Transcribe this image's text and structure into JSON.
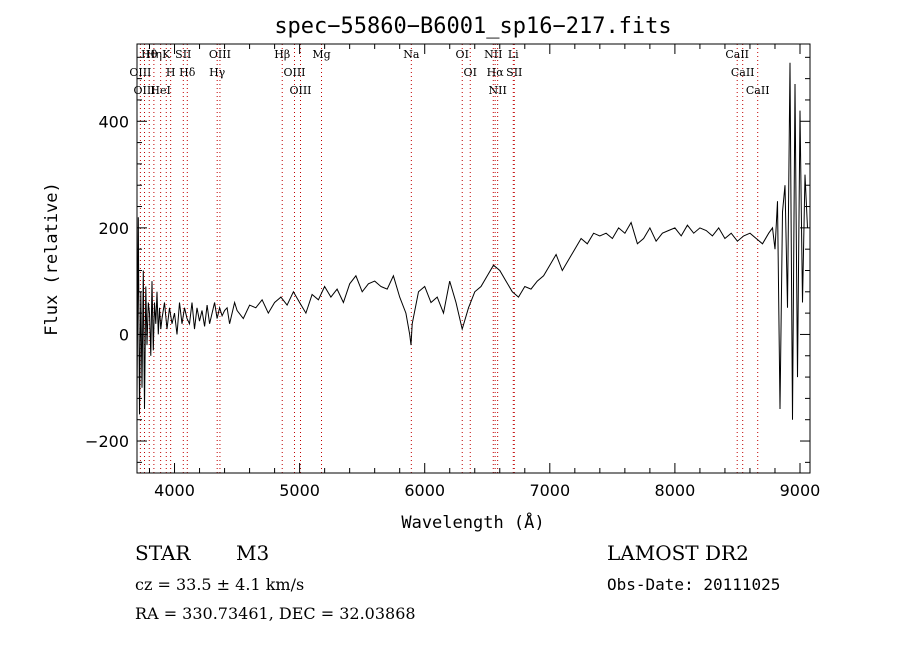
{
  "chart_data": {
    "type": "line",
    "title": "spec−55860−B6001_sp16−217.fits",
    "xlabel": "Wavelength (Å)",
    "ylabel": "Flux (relative)",
    "xlim": [
      3700,
      9080
    ],
    "ylim": [
      -260,
      545
    ],
    "x_ticks": [
      4000,
      5000,
      6000,
      7000,
      8000,
      9000
    ],
    "y_ticks": [
      -200,
      0,
      200,
      400
    ],
    "line_color": "#000000",
    "marker_color": "#c00000",
    "series": [
      {
        "x": [
          3700,
          3710,
          3720,
          3730,
          3740,
          3750,
          3760,
          3770,
          3780,
          3790,
          3800,
          3810,
          3820,
          3830,
          3840,
          3850,
          3860,
          3870,
          3880,
          3890,
          3900,
          3920,
          3940,
          3960,
          3980,
          4000,
          4020,
          4040,
          4060,
          4080,
          4100,
          4120,
          4140,
          4160,
          4180,
          4200,
          4220,
          4240,
          4260,
          4280,
          4300,
          4320,
          4340,
          4360,
          4380,
          4400,
          4420,
          4440,
          4460,
          4480,
          4500,
          4550,
          4600,
          4650,
          4700,
          4750,
          4800,
          4850,
          4900,
          4950,
          5000,
          5050,
          5100,
          5150,
          5200,
          5250,
          5300,
          5350,
          5400,
          5450,
          5500,
          5550,
          5600,
          5650,
          5700,
          5750,
          5800,
          5850,
          5880,
          5890,
          5900,
          5950,
          6000,
          6050,
          6100,
          6150,
          6200,
          6250,
          6300,
          6350,
          6400,
          6450,
          6500,
          6550,
          6600,
          6650,
          6700,
          6750,
          6800,
          6850,
          6900,
          6950,
          7000,
          7050,
          7100,
          7150,
          7200,
          7250,
          7300,
          7350,
          7400,
          7450,
          7500,
          7550,
          7600,
          7650,
          7700,
          7750,
          7800,
          7850,
          7900,
          7950,
          8000,
          8050,
          8100,
          8150,
          8200,
          8250,
          8300,
          8350,
          8400,
          8450,
          8500,
          8550,
          8600,
          8650,
          8700,
          8750,
          8780,
          8800,
          8820,
          8840,
          8860,
          8880,
          8900,
          8920,
          8940,
          8960,
          8980,
          9000,
          9020,
          9040,
          9060
        ],
        "y": [
          -120,
          220,
          -150,
          80,
          -100,
          120,
          -140,
          90,
          -20,
          60,
          40,
          -40,
          100,
          -30,
          60,
          20,
          80,
          0,
          50,
          10,
          30,
          60,
          10,
          50,
          20,
          40,
          0,
          60,
          20,
          50,
          30,
          20,
          60,
          10,
          50,
          25,
          45,
          15,
          55,
          20,
          40,
          60,
          30,
          50,
          35,
          45,
          50,
          20,
          40,
          60,
          45,
          30,
          55,
          50,
          65,
          40,
          60,
          70,
          55,
          80,
          60,
          40,
          75,
          65,
          90,
          70,
          85,
          60,
          95,
          110,
          80,
          95,
          100,
          90,
          85,
          110,
          70,
          40,
          0,
          -20,
          20,
          80,
          90,
          60,
          70,
          40,
          100,
          60,
          10,
          50,
          80,
          90,
          110,
          130,
          120,
          100,
          80,
          70,
          90,
          85,
          100,
          110,
          130,
          150,
          120,
          140,
          160,
          180,
          170,
          190,
          185,
          190,
          180,
          200,
          190,
          210,
          170,
          180,
          200,
          175,
          190,
          195,
          200,
          185,
          205,
          190,
          200,
          195,
          185,
          200,
          180,
          190,
          175,
          185,
          190,
          180,
          170,
          190,
          200,
          160,
          250,
          -140,
          230,
          280,
          50,
          510,
          -160,
          470,
          -80,
          420,
          60,
          300,
          200
        ]
      }
    ],
    "lines": [
      {
        "label": "Hθ",
        "x": 3798
      },
      {
        "label": "OIII",
        "x": 3727
      },
      {
        "label": "OIII",
        "x": 3760
      },
      {
        "label": "Hη",
        "x": 3835
      },
      {
        "label": "K",
        "x": 3934
      },
      {
        "label": "HeI",
        "x": 3889
      },
      {
        "label": "H",
        "x": 3969
      },
      {
        "label": "SII",
        "x": 4070
      },
      {
        "label": "Hδ",
        "x": 4102
      },
      {
        "label": "OIII",
        "x": 4363
      },
      {
        "label": "Hγ",
        "x": 4341
      },
      {
        "label": "Hβ",
        "x": 4861
      },
      {
        "label": "OIII",
        "x": 4959
      },
      {
        "label": "OIII",
        "x": 5007
      },
      {
        "label": "Mg",
        "x": 5175
      },
      {
        "label": "Na",
        "x": 5893
      },
      {
        "label": "OI",
        "x": 6300
      },
      {
        "label": "OI",
        "x": 6364
      },
      {
        "label": "NII",
        "x": 6548
      },
      {
        "label": "Hα",
        "x": 6563
      },
      {
        "label": "NII",
        "x": 6583
      },
      {
        "label": "SII",
        "x": 6716
      },
      {
        "label": "Li",
        "x": 6708
      },
      {
        "label": "CaII",
        "x": 8498
      },
      {
        "label": "CaII",
        "x": 8542
      },
      {
        "label": "CaII",
        "x": 8662
      }
    ]
  },
  "info": {
    "object_class": "STAR",
    "subclass": "M3",
    "survey": "LAMOST DR2",
    "cz": "cz = 33.5 ± 4.1 km/s",
    "obs_date": "Obs-Date: 20111025",
    "coords": "RA = 330.73461, DEC =  32.03868"
  }
}
